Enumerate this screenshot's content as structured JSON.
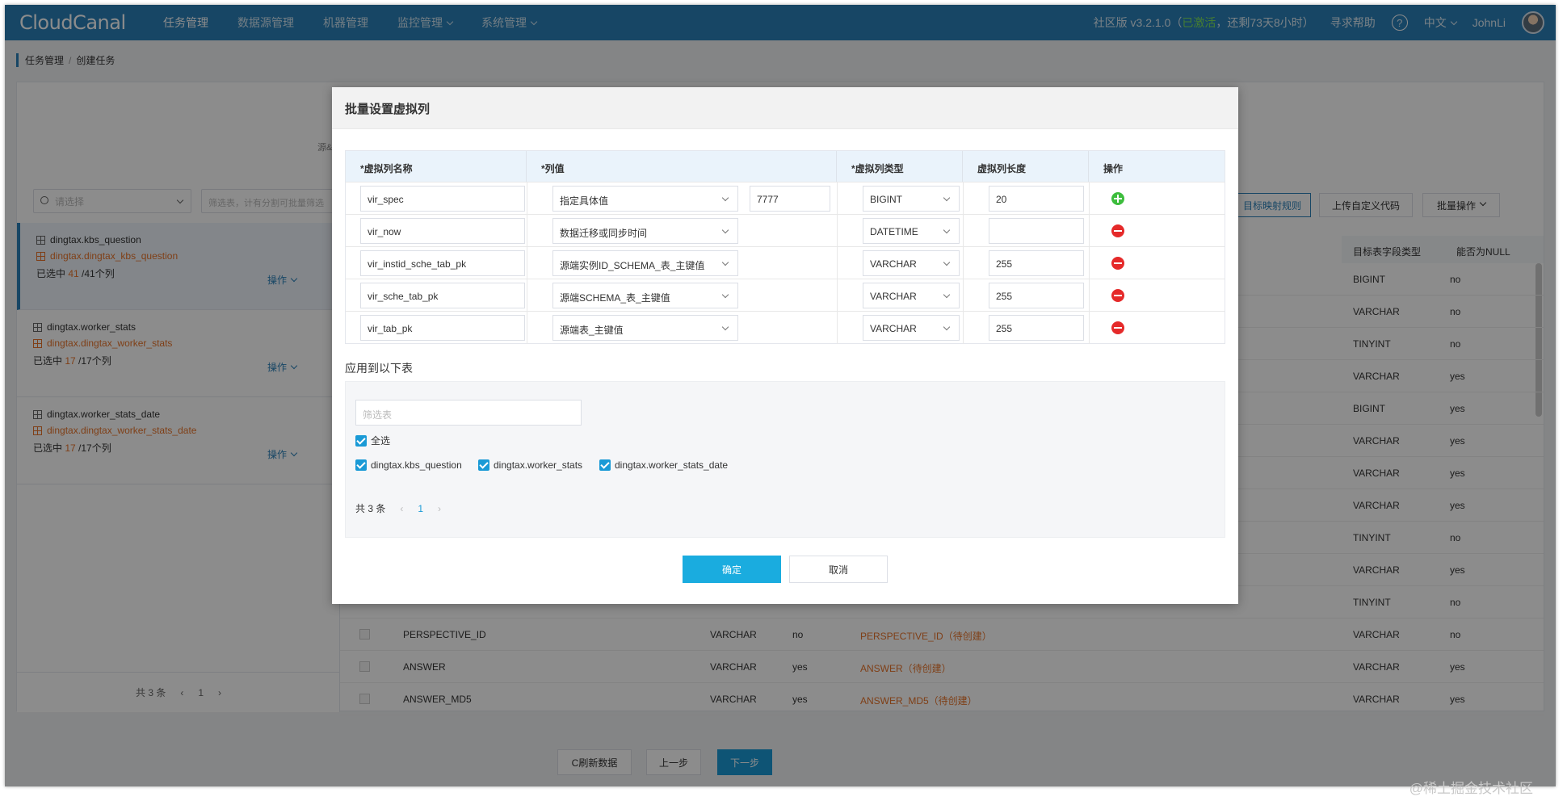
{
  "app": {
    "logo": "CloudCanal",
    "nav": [
      {
        "label": "任务管理",
        "active": true,
        "dropdown": false
      },
      {
        "label": "数据源管理",
        "active": false,
        "dropdown": false
      },
      {
        "label": "机器管理",
        "active": false,
        "dropdown": false
      },
      {
        "label": "监控管理",
        "active": false,
        "dropdown": true
      },
      {
        "label": "系统管理",
        "active": false,
        "dropdown": true
      }
    ],
    "version_prefix": "社区版 v3.2.1.0（",
    "license_status": "已激活",
    "remaining": "，还剩73天8小时）",
    "help": "寻求帮助",
    "help_icon": "?",
    "language": "中文",
    "user": "JohnLi"
  },
  "breadcrumb": {
    "parent": "任务管理",
    "separator": "/",
    "current": "创建任务"
  },
  "step_label": "源&目",
  "left_panel": {
    "db_placeholder": "请选择",
    "table_search_placeholder": "筛选表，计有分割可批量筛选",
    "tables": [
      {
        "source": "dingtax.kbs_question",
        "target": "dingtax.dingtax_kbs_question",
        "count_prefix": "已选中 ",
        "selected": "41",
        "total": " /41个列",
        "op": "操作"
      },
      {
        "source": "dingtax.worker_stats",
        "target": "dingtax.dingtax_worker_stats",
        "count_prefix": "已选中 ",
        "selected": "17",
        "total": " /17个列",
        "op": "操作"
      },
      {
        "source": "dingtax.worker_stats_date",
        "target": "dingtax.dingtax_worker_stats_date",
        "count_prefix": "已选中 ",
        "selected": "17",
        "total": " /17个列",
        "op": "操作"
      }
    ],
    "pager": {
      "total": "共 3 条",
      "page": "1",
      "prev": "‹",
      "next": "›"
    }
  },
  "actions": {
    "mapping_rule": "目标映射规则",
    "upload_code": "上传自定义代码",
    "batch_ops": "批量操作"
  },
  "bg_columns": {
    "target_type": "目标表字段类型",
    "nullable": "能否为NULL"
  },
  "bg_rows": [
    {
      "type": "BIGINT",
      "nullable": "no"
    },
    {
      "type": "VARCHAR",
      "nullable": "no"
    },
    {
      "type": "TINYINT",
      "nullable": "no"
    },
    {
      "type": "VARCHAR",
      "nullable": "yes"
    },
    {
      "type": "BIGINT",
      "nullable": "yes"
    },
    {
      "type": "VARCHAR",
      "nullable": "yes"
    },
    {
      "type": "VARCHAR",
      "nullable": "yes"
    },
    {
      "type": "VARCHAR",
      "nullable": "yes"
    },
    {
      "type": "TINYINT",
      "nullable": "no"
    },
    {
      "type": "VARCHAR",
      "nullable": "yes"
    },
    {
      "type": "TINYINT",
      "nullable": "no"
    },
    {
      "name": "PERSPECTIVE_ID",
      "src_type": "VARCHAR",
      "src_null": "no",
      "target": "PERSPECTIVE_ID（待创建）",
      "type": "VARCHAR",
      "nullable": "no"
    },
    {
      "name": "ANSWER",
      "src_type": "VARCHAR",
      "src_null": "yes",
      "target": "ANSWER（待创建）",
      "type": "VARCHAR",
      "nullable": "yes"
    },
    {
      "name": "ANSWER_MD5",
      "src_type": "VARCHAR",
      "src_null": "yes",
      "target": "ANSWER_MD5（待创建）",
      "type": "VARCHAR",
      "nullable": "yes"
    }
  ],
  "footer": {
    "refresh": "C刷新数据",
    "prev": "上一步",
    "next": "下一步"
  },
  "modal": {
    "title": "批量设置虚拟列",
    "headers": {
      "name": "*虚拟列名称",
      "value": "*列值",
      "type": "*虚拟列类型",
      "length": "虚拟列长度",
      "op": "操作"
    },
    "rows": [
      {
        "name": "vir_spec",
        "value": "指定具体值",
        "extra": "7777",
        "type": "BIGINT",
        "length": "20",
        "action": "add"
      },
      {
        "name": "vir_now",
        "value": "数据迁移或同步时间",
        "extra": "",
        "type": "DATETIME",
        "length": "",
        "action": "delete"
      },
      {
        "name": "vir_instid_sche_tab_pk",
        "value": "源端实例ID_SCHEMA_表_主键值",
        "extra": "",
        "type": "VARCHAR",
        "length": "255",
        "action": "delete"
      },
      {
        "name": "vir_sche_tab_pk",
        "value": "源端SCHEMA_表_主键值",
        "extra": "",
        "type": "VARCHAR",
        "length": "255",
        "action": "delete"
      },
      {
        "name": "vir_tab_pk",
        "value": "源端表_主键值",
        "extra": "",
        "type": "VARCHAR",
        "length": "255",
        "action": "delete"
      }
    ],
    "apply_label": "应用到以下表",
    "filter_placeholder": "筛选表",
    "select_all": "全选",
    "tables": [
      "dingtax.kbs_question",
      "dingtax.worker_stats",
      "dingtax.worker_stats_date"
    ],
    "pager": {
      "total": "共 3 条",
      "page": "1",
      "prev": "‹",
      "next": "›"
    },
    "ok": "确定",
    "cancel": "取消"
  },
  "watermark": "@稀土掘金技术社区"
}
